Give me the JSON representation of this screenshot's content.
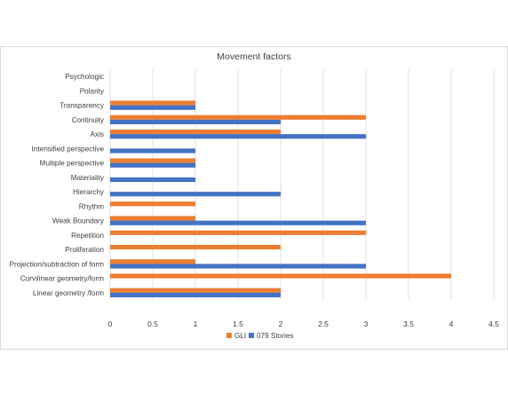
{
  "chart_data": {
    "type": "bar",
    "orientation": "horizontal",
    "title": "Movement factors",
    "xlabel": "",
    "ylabel": "",
    "xlim": [
      0,
      4.5
    ],
    "xticks": [
      "0",
      "0.5",
      "1",
      "1.5",
      "2",
      "2.5",
      "3",
      "3.5",
      "4",
      "4.5"
    ],
    "grid": true,
    "legend_position": "bottom",
    "categories": [
      "Psychologic",
      "Polarity",
      "Transparency",
      "Continuity",
      "Axis",
      "Intensified perspective",
      "Multiple perspective",
      "Materiality",
      "Hierarchy",
      "Rhythm",
      "Weak Boundary",
      "Repetition",
      "Proliferation",
      "Projection/subtraction of form",
      "Curvilinear geometry/form",
      "Linear geometry /form"
    ],
    "series": [
      {
        "name": "GLI",
        "color": "#ED7D31",
        "values": [
          0,
          0,
          1,
          3,
          2,
          0,
          1,
          0,
          0,
          1,
          1,
          3,
          2,
          1,
          4,
          2
        ]
      },
      {
        "name": "079 Stories",
        "color": "#4472C4",
        "values": [
          0,
          0,
          1,
          2,
          3,
          1,
          1,
          1,
          2,
          0,
          3,
          0,
          0,
          3,
          0,
          2
        ]
      }
    ]
  }
}
